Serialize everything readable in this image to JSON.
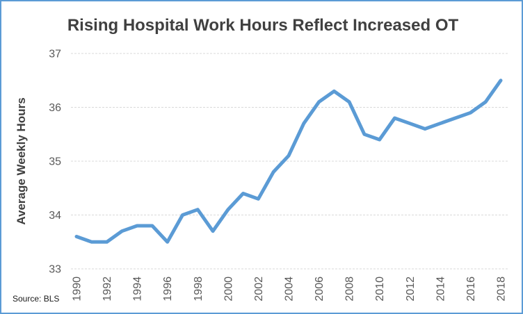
{
  "chart_data": {
    "type": "line",
    "title": "Rising Hospital Work Hours Reflect Increased OT",
    "xlabel": "",
    "ylabel": "Average Weekly Hours",
    "x": [
      1990,
      1991,
      1992,
      1993,
      1994,
      1995,
      1996,
      1997,
      1998,
      1999,
      2000,
      2001,
      2002,
      2003,
      2004,
      2005,
      2006,
      2007,
      2008,
      2009,
      2010,
      2011,
      2012,
      2013,
      2014,
      2015,
      2016,
      2017,
      2018
    ],
    "values": [
      33.6,
      33.5,
      33.5,
      33.7,
      33.8,
      33.8,
      33.5,
      34.0,
      34.1,
      33.7,
      34.1,
      34.4,
      34.3,
      34.8,
      35.1,
      35.7,
      36.1,
      36.3,
      36.1,
      35.5,
      35.4,
      35.8,
      35.7,
      35.6,
      35.7,
      35.8,
      35.9,
      36.1,
      36.5
    ],
    "ylim": [
      33,
      37
    ],
    "ytick_step": 1,
    "xtick_step": 2,
    "x_tick_rotation": -90,
    "grid": "horizontal-dashed",
    "legend": "none",
    "line_color": "#5B9BD5"
  },
  "source_note": "Source: BLS",
  "colors": {
    "accent_blue": "#5B9BD5",
    "frame_border": "#5B9BD5",
    "grid": "#D9D9D9",
    "tick_label": "#595959",
    "title_text": "#404040",
    "axis_title_text": "#404040",
    "source_text": "#1a1a1a"
  }
}
